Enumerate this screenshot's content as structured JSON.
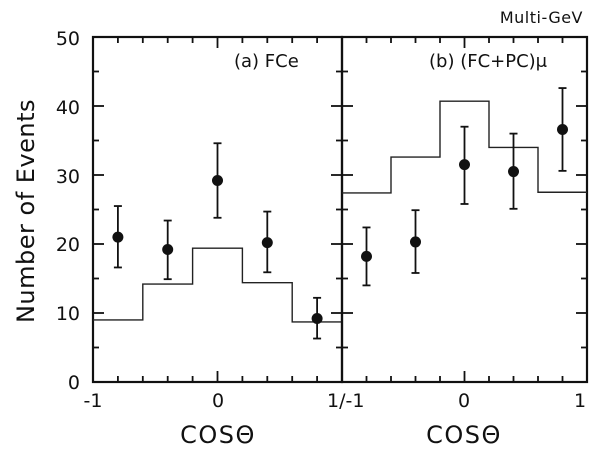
{
  "header": {
    "label": "Multi-GeV"
  },
  "y_axis": {
    "label": "Number of Events",
    "ticks": [
      "0",
      "10",
      "20",
      "30",
      "40",
      "50"
    ]
  },
  "chart_data": [
    {
      "type": "scatter",
      "title": "(a) FCe",
      "xlabel": "COSΘ",
      "x_ticks": [
        "-1",
        "0",
        "1/"
      ],
      "xlim": [
        -1,
        1
      ],
      "ylim": [
        0,
        50
      ],
      "grid": false,
      "series": [
        {
          "kind": "points_with_errors",
          "x": [
            -0.8,
            -0.4,
            0.0,
            0.4,
            0.8
          ],
          "y": [
            21,
            19.2,
            29.2,
            20.2,
            9.2
          ],
          "err_low": [
            16.6,
            14.9,
            23.8,
            15.9,
            6.3
          ],
          "err_high": [
            25.5,
            23.4,
            34.6,
            24.7,
            12.2
          ]
        },
        {
          "kind": "histogram",
          "bin_edges": [
            -1,
            -0.6,
            -0.2,
            0.2,
            0.6,
            1
          ],
          "values": [
            9,
            14.2,
            19.4,
            14.4,
            8.7
          ]
        }
      ]
    },
    {
      "type": "scatter",
      "title": "(b) (FC+PC)μ",
      "xlabel": "COSΘ",
      "x_ticks": [
        "-1",
        "0",
        "1"
      ],
      "xlim": [
        -1,
        1
      ],
      "ylim": [
        0,
        50
      ],
      "grid": false,
      "series": [
        {
          "kind": "points_with_errors",
          "x": [
            -0.8,
            -0.4,
            0.0,
            0.4,
            0.8
          ],
          "y": [
            18.2,
            20.3,
            31.5,
            30.5,
            36.6
          ],
          "err_low": [
            14,
            15.8,
            25.8,
            25.1,
            30.6
          ],
          "err_high": [
            22.4,
            24.9,
            37,
            36,
            42.6
          ]
        },
        {
          "kind": "histogram",
          "bin_edges": [
            -1,
            -0.6,
            -0.2,
            0.2,
            0.6,
            1
          ],
          "values": [
            27.4,
            32.6,
            40.7,
            34,
            27.5
          ]
        }
      ]
    }
  ]
}
